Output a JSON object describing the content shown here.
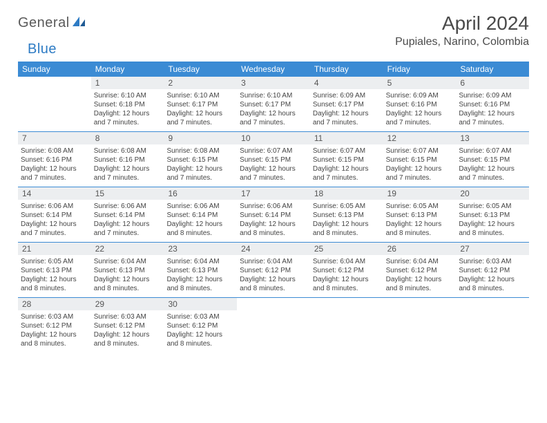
{
  "logo": {
    "word1": "General",
    "word2": "Blue"
  },
  "title": "April 2024",
  "location": "Pupiales, Narino, Colombia",
  "colors": {
    "header_bar": "#3b8bd4",
    "daynum_bg": "#eceef0",
    "divider": "#3b8bd4",
    "logo_gray": "#5a5a5a",
    "logo_blue": "#2d7bc4",
    "text": "#444444"
  },
  "typography": {
    "title_fontsize": 28,
    "location_fontsize": 16,
    "dow_fontsize": 12,
    "daynum_fontsize": 12,
    "body_fontsize": 10
  },
  "days_of_week": [
    "Sunday",
    "Monday",
    "Tuesday",
    "Wednesday",
    "Thursday",
    "Friday",
    "Saturday"
  ],
  "weeks": [
    [
      null,
      {
        "n": "1",
        "sr": "6:10 AM",
        "ss": "6:18 PM",
        "dh": "12",
        "dm": "7"
      },
      {
        "n": "2",
        "sr": "6:10 AM",
        "ss": "6:17 PM",
        "dh": "12",
        "dm": "7"
      },
      {
        "n": "3",
        "sr": "6:10 AM",
        "ss": "6:17 PM",
        "dh": "12",
        "dm": "7"
      },
      {
        "n": "4",
        "sr": "6:09 AM",
        "ss": "6:17 PM",
        "dh": "12",
        "dm": "7"
      },
      {
        "n": "5",
        "sr": "6:09 AM",
        "ss": "6:16 PM",
        "dh": "12",
        "dm": "7"
      },
      {
        "n": "6",
        "sr": "6:09 AM",
        "ss": "6:16 PM",
        "dh": "12",
        "dm": "7"
      }
    ],
    [
      {
        "n": "7",
        "sr": "6:08 AM",
        "ss": "6:16 PM",
        "dh": "12",
        "dm": "7"
      },
      {
        "n": "8",
        "sr": "6:08 AM",
        "ss": "6:16 PM",
        "dh": "12",
        "dm": "7"
      },
      {
        "n": "9",
        "sr": "6:08 AM",
        "ss": "6:15 PM",
        "dh": "12",
        "dm": "7"
      },
      {
        "n": "10",
        "sr": "6:07 AM",
        "ss": "6:15 PM",
        "dh": "12",
        "dm": "7"
      },
      {
        "n": "11",
        "sr": "6:07 AM",
        "ss": "6:15 PM",
        "dh": "12",
        "dm": "7"
      },
      {
        "n": "12",
        "sr": "6:07 AM",
        "ss": "6:15 PM",
        "dh": "12",
        "dm": "7"
      },
      {
        "n": "13",
        "sr": "6:07 AM",
        "ss": "6:15 PM",
        "dh": "12",
        "dm": "7"
      }
    ],
    [
      {
        "n": "14",
        "sr": "6:06 AM",
        "ss": "6:14 PM",
        "dh": "12",
        "dm": "7"
      },
      {
        "n": "15",
        "sr": "6:06 AM",
        "ss": "6:14 PM",
        "dh": "12",
        "dm": "7"
      },
      {
        "n": "16",
        "sr": "6:06 AM",
        "ss": "6:14 PM",
        "dh": "12",
        "dm": "8"
      },
      {
        "n": "17",
        "sr": "6:06 AM",
        "ss": "6:14 PM",
        "dh": "12",
        "dm": "8"
      },
      {
        "n": "18",
        "sr": "6:05 AM",
        "ss": "6:13 PM",
        "dh": "12",
        "dm": "8"
      },
      {
        "n": "19",
        "sr": "6:05 AM",
        "ss": "6:13 PM",
        "dh": "12",
        "dm": "8"
      },
      {
        "n": "20",
        "sr": "6:05 AM",
        "ss": "6:13 PM",
        "dh": "12",
        "dm": "8"
      }
    ],
    [
      {
        "n": "21",
        "sr": "6:05 AM",
        "ss": "6:13 PM",
        "dh": "12",
        "dm": "8"
      },
      {
        "n": "22",
        "sr": "6:04 AM",
        "ss": "6:13 PM",
        "dh": "12",
        "dm": "8"
      },
      {
        "n": "23",
        "sr": "6:04 AM",
        "ss": "6:13 PM",
        "dh": "12",
        "dm": "8"
      },
      {
        "n": "24",
        "sr": "6:04 AM",
        "ss": "6:12 PM",
        "dh": "12",
        "dm": "8"
      },
      {
        "n": "25",
        "sr": "6:04 AM",
        "ss": "6:12 PM",
        "dh": "12",
        "dm": "8"
      },
      {
        "n": "26",
        "sr": "6:04 AM",
        "ss": "6:12 PM",
        "dh": "12",
        "dm": "8"
      },
      {
        "n": "27",
        "sr": "6:03 AM",
        "ss": "6:12 PM",
        "dh": "12",
        "dm": "8"
      }
    ],
    [
      {
        "n": "28",
        "sr": "6:03 AM",
        "ss": "6:12 PM",
        "dh": "12",
        "dm": "8"
      },
      {
        "n": "29",
        "sr": "6:03 AM",
        "ss": "6:12 PM",
        "dh": "12",
        "dm": "8"
      },
      {
        "n": "30",
        "sr": "6:03 AM",
        "ss": "6:12 PM",
        "dh": "12",
        "dm": "8"
      },
      null,
      null,
      null,
      null
    ]
  ],
  "labels": {
    "sunrise_prefix": "Sunrise: ",
    "sunset_prefix": "Sunset: ",
    "daylight_prefix": "Daylight: ",
    "hours_word": " hours",
    "and_word": "and ",
    "minutes_word": " minutes."
  }
}
